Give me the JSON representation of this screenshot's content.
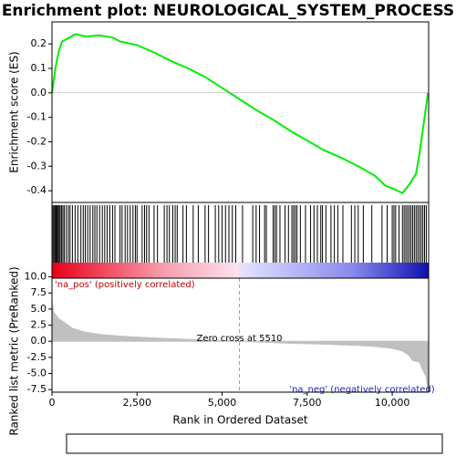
{
  "chart_data": [
    {
      "type": "line",
      "title": "Enrichment plot: NEUROLOGICAL_SYSTEM_PROCESS",
      "y_label": "Enrichment score (ES)",
      "xlim": [
        0,
        11070
      ],
      "ylim": [
        -0.448,
        0.29
      ],
      "yticks": [
        -0.4,
        -0.3,
        -0.2,
        -0.1,
        {
          "value": 0,
          "label": "0.0"
        },
        0.1,
        0.2
      ],
      "series": [
        {
          "name": "Enrichment profile",
          "color": "#00ee00",
          "x": [
            0,
            100,
            200,
            300,
            500,
            700,
            1000,
            1400,
            1800,
            2000,
            2500,
            3000,
            3500,
            4000,
            4500,
            5000,
            5500,
            6000,
            6500,
            7000,
            7500,
            8000,
            8500,
            9000,
            9500,
            9800,
            10000,
            10300,
            10500,
            10700,
            10800,
            10900,
            11000,
            11050
          ],
          "values": [
            0,
            0.1,
            0.17,
            0.21,
            0.225,
            0.24,
            0.23,
            0.235,
            0.225,
            0.21,
            0.195,
            0.165,
            0.13,
            0.1,
            0.065,
            0.02,
            -0.025,
            -0.07,
            -0.11,
            -0.155,
            -0.195,
            -0.235,
            -0.265,
            -0.3,
            -0.34,
            -0.38,
            -0.39,
            -0.41,
            -0.375,
            -0.33,
            -0.25,
            -0.15,
            -0.05,
            0.0
          ]
        }
      ]
    },
    {
      "type": "hits",
      "xlim": [
        0,
        11070
      ],
      "series": [
        {
          "name": "Hits",
          "color": "#000000",
          "x": [
            30,
            60,
            90,
            120,
            150,
            180,
            210,
            240,
            280,
            320,
            360,
            420,
            480,
            530,
            600,
            680,
            760,
            850,
            920,
            980,
            1050,
            1120,
            1200,
            1260,
            1320,
            1400,
            1480,
            1550,
            1620,
            1700,
            1780,
            1850,
            2000,
            2060,
            2150,
            2220,
            2300,
            2380,
            2450,
            2500,
            2650,
            2720,
            2780,
            2850,
            3000,
            3100,
            3300,
            3380,
            3450,
            3550,
            3620,
            3680,
            3850,
            3950,
            4150,
            4300,
            4500,
            4600,
            4800,
            4900,
            5000,
            5100,
            5200,
            5300,
            5400,
            5600,
            5900,
            6000,
            6100,
            6250,
            6300,
            6500,
            6550,
            6600,
            6700,
            6850,
            6950,
            7050,
            7100,
            7150,
            7200,
            7300,
            7450,
            7600,
            7700,
            7800,
            7900,
            7950,
            8050,
            8200,
            8300,
            8400,
            8550,
            8800,
            8900,
            9000,
            9150,
            9400,
            9700,
            9850,
            10000,
            10050,
            10100,
            10200,
            10300,
            10350,
            10400,
            10450,
            10500,
            10550,
            10600,
            10650,
            10700,
            10750,
            10800,
            10850,
            10900,
            10950,
            11000
          ]
        }
      ]
    },
    {
      "type": "area",
      "x_label": "Rank in Ordered Dataset",
      "y_label": "Ranked list metric (PreRanked)",
      "xlim": [
        0,
        11070
      ],
      "ylim": [
        -7.9,
        9.8
      ],
      "xticks": [
        0,
        {
          "value": 2500,
          "label": "2,500"
        },
        {
          "value": 5000,
          "label": "5,000"
        },
        {
          "value": 7500,
          "label": "7,500"
        },
        {
          "value": 10000,
          "label": "10,000"
        }
      ],
      "yticks": [
        {
          "value": -7.5,
          "label": "-7.5"
        },
        {
          "value": -5,
          "label": "-5.0"
        },
        {
          "value": -2.5,
          "label": "-2.5"
        },
        {
          "value": 0,
          "label": "0.0"
        },
        2.5,
        {
          "value": 5,
          "label": "5.0"
        },
        7.5,
        {
          "value": 10,
          "label": "10.0"
        }
      ],
      "annotations": [
        "'na_pos' (positively correlated)",
        "Zero cross at 5510",
        "'na_neg' (negatively correlated)"
      ],
      "zero_cross": 5510,
      "series": [
        {
          "name": "Ranking metric scores",
          "color": "#c0c0c0",
          "x": [
            0,
            50,
            200,
            400,
            600,
            1000,
            1500,
            2000,
            3000,
            4000,
            5000,
            5510,
            6000,
            7000,
            8000,
            9000,
            9500,
            10000,
            10300,
            10500,
            10600,
            10800,
            10900,
            11000,
            11050
          ],
          "values": [
            6.2,
            4.5,
            3.5,
            2.8,
            2.0,
            1.4,
            1.0,
            0.8,
            0.5,
            0.3,
            0.1,
            0,
            -0.1,
            -0.3,
            -0.45,
            -0.65,
            -0.8,
            -1.1,
            -1.5,
            -2.2,
            -3.0,
            -3.2,
            -4.5,
            -5.5,
            -7.8
          ]
        }
      ]
    }
  ]
}
